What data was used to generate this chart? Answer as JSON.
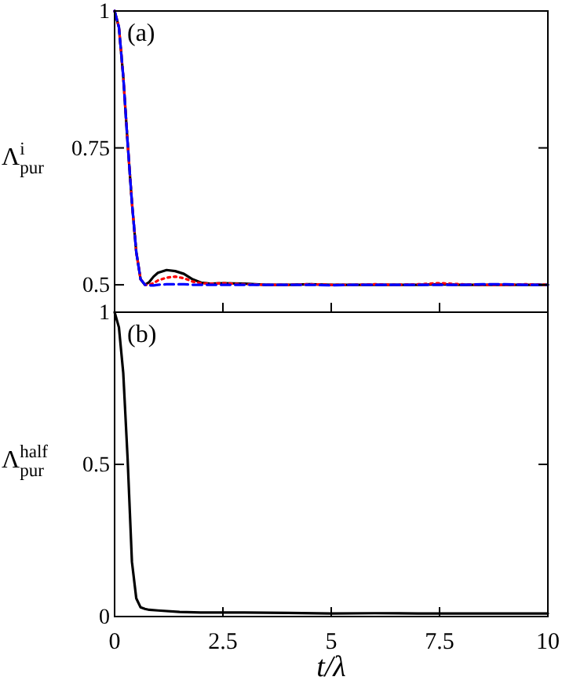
{
  "chart_data": [
    {
      "type": "line",
      "ylabel": "Λ$^{i}$$_{pur}$",
      "annotations": [
        "(a)"
      ],
      "xlim": [
        0,
        10
      ],
      "xticks": [
        0,
        2.5,
        5,
        7.5,
        10
      ],
      "ylim": [
        0.45,
        1
      ],
      "yticks": [
        0.5,
        0.75,
        1
      ],
      "tick_labels": "y",
      "grid": false,
      "series": [
        {
          "color": "#000000",
          "line_style": "solid",
          "x": [
            0,
            0.1,
            0.2,
            0.3,
            0.4,
            0.5,
            0.6,
            0.7,
            0.8,
            0.9,
            1.0,
            1.2,
            1.4,
            1.6,
            1.8,
            2.0,
            2.2,
            2.5,
            3,
            3.5,
            4,
            4.5,
            5,
            5.5,
            6,
            6.5,
            7,
            7.5,
            8,
            8.5,
            9,
            9.5,
            10
          ],
          "values": [
            1,
            0.97,
            0.88,
            0.76,
            0.65,
            0.56,
            0.51,
            0.5,
            0.505,
            0.515,
            0.522,
            0.527,
            0.525,
            0.52,
            0.51,
            0.504,
            0.502,
            0.503,
            0.502,
            0.5,
            0.5,
            0.501,
            0.5,
            0.5,
            0.5,
            0.5,
            0.5,
            0.501,
            0.5,
            0.5,
            0.5,
            0.5,
            0.5
          ]
        },
        {
          "color": "#ff0000",
          "line_style": "dotted",
          "x": [
            0,
            0.1,
            0.2,
            0.3,
            0.4,
            0.5,
            0.6,
            0.7,
            0.8,
            0.9,
            1.0,
            1.2,
            1.4,
            1.6,
            1.8,
            2.0,
            2.2,
            2.5,
            3,
            3.5,
            4,
            4.5,
            5,
            5.5,
            6,
            6.5,
            7,
            7.5,
            8,
            8.5,
            9,
            9.5,
            10
          ],
          "values": [
            1,
            0.97,
            0.88,
            0.76,
            0.65,
            0.56,
            0.51,
            0.5,
            0.5,
            0.503,
            0.508,
            0.513,
            0.515,
            0.512,
            0.506,
            0.503,
            0.502,
            0.503,
            0.501,
            0.5,
            0.5,
            0.501,
            0.5,
            0.5,
            0.501,
            0.5,
            0.501,
            0.503,
            0.501,
            0.5,
            0.5,
            0.501,
            0.5
          ]
        },
        {
          "color": "#0000ff",
          "line_style": "dashed",
          "x": [
            0,
            0.1,
            0.2,
            0.3,
            0.4,
            0.5,
            0.6,
            0.7,
            0.8,
            0.9,
            1.0,
            1.2,
            1.4,
            1.6,
            1.8,
            2.0,
            2.2,
            2.5,
            3,
            3.5,
            4,
            4.5,
            5,
            5.5,
            6,
            6.5,
            7,
            7.5,
            8,
            8.5,
            9,
            9.5,
            10
          ],
          "values": [
            1,
            0.97,
            0.88,
            0.76,
            0.65,
            0.56,
            0.51,
            0.5,
            0.499,
            0.499,
            0.5,
            0.501,
            0.501,
            0.501,
            0.5,
            0.5,
            0.5,
            0.5,
            0.5,
            0.5,
            0.5,
            0.5,
            0.499,
            0.5,
            0.5,
            0.5,
            0.5,
            0.5,
            0.5,
            0.501,
            0.501,
            0.5,
            0.5
          ]
        }
      ]
    },
    {
      "type": "line",
      "ylabel": "Λ$^{half}$$_{pur}$",
      "xlabel": "t/λ",
      "annotations": [
        "(b)"
      ],
      "xlim": [
        0,
        10
      ],
      "xticks": [
        0,
        2.5,
        5,
        7.5,
        10
      ],
      "ylim": [
        0,
        1
      ],
      "yticks": [
        0,
        0.5,
        1
      ],
      "grid": false,
      "series": [
        {
          "color": "#000000",
          "line_style": "solid",
          "x": [
            0,
            0.1,
            0.2,
            0.3,
            0.4,
            0.5,
            0.6,
            0.7,
            0.8,
            1.0,
            1.5,
            2,
            3,
            4,
            5,
            6,
            7,
            8,
            9,
            10
          ],
          "values": [
            1,
            0.95,
            0.8,
            0.52,
            0.18,
            0.06,
            0.03,
            0.025,
            0.022,
            0.02,
            0.015,
            0.013,
            0.013,
            0.012,
            0.01,
            0.011,
            0.01,
            0.01,
            0.01,
            0.01
          ]
        }
      ]
    }
  ]
}
